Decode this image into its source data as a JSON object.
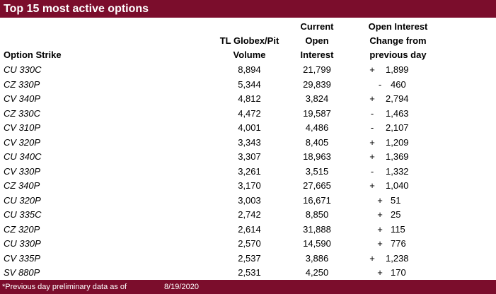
{
  "title": "Top 15 most active options",
  "headers": {
    "strike": "Option Strike",
    "volume": [
      "TL Globex/Pit",
      "Volume"
    ],
    "open_interest": [
      "Current",
      "Open",
      "Interest"
    ],
    "change": [
      "Open Interest",
      "Change from",
      "previous day"
    ]
  },
  "rows": [
    {
      "strike": "CU 330C",
      "volume": "8,894",
      "oi": "21,799",
      "sign": "+",
      "change": "1,899"
    },
    {
      "strike": "CZ 330P",
      "volume": "5,344",
      "oi": "29,839",
      "sign": "-",
      "change": "460"
    },
    {
      "strike": "CV 340P",
      "volume": "4,812",
      "oi": "3,824",
      "sign": "+",
      "change": "2,794"
    },
    {
      "strike": "CZ 330C",
      "volume": "4,472",
      "oi": "19,587",
      "sign": "-",
      "change": "1,463"
    },
    {
      "strike": "CV 310P",
      "volume": "4,001",
      "oi": "4,486",
      "sign": "-",
      "change": "2,107"
    },
    {
      "strike": "CV 320P",
      "volume": "3,343",
      "oi": "8,405",
      "sign": "+",
      "change": "1,209"
    },
    {
      "strike": "CU 340C",
      "volume": "3,307",
      "oi": "18,963",
      "sign": "+",
      "change": "1,369"
    },
    {
      "strike": "CV 330P",
      "volume": "3,261",
      "oi": "3,515",
      "sign": "-",
      "change": "1,332"
    },
    {
      "strike": "CZ 340P",
      "volume": "3,170",
      "oi": "27,665",
      "sign": "+",
      "change": "1,040"
    },
    {
      "strike": "CU 320P",
      "volume": "3,003",
      "oi": "16,671",
      "sign": "+",
      "change": "51"
    },
    {
      "strike": "CU 335C",
      "volume": "2,742",
      "oi": "8,850",
      "sign": "+",
      "change": "25"
    },
    {
      "strike": "CZ 320P",
      "volume": "2,614",
      "oi": "31,888",
      "sign": "+",
      "change": "115"
    },
    {
      "strike": "CU 330P",
      "volume": "2,570",
      "oi": "14,590",
      "sign": "+",
      "change": "776"
    },
    {
      "strike": "CV 335P",
      "volume": "2,537",
      "oi": "3,886",
      "sign": "+",
      "change": "1,238"
    },
    {
      "strike": "SV 880P",
      "volume": "2,531",
      "oi": "4,250",
      "sign": "+",
      "change": "170"
    }
  ],
  "footer": {
    "note": "*Previous day preliminary data as of",
    "date": "8/19/2020"
  },
  "colors": {
    "bar": "#7b0d2c"
  }
}
